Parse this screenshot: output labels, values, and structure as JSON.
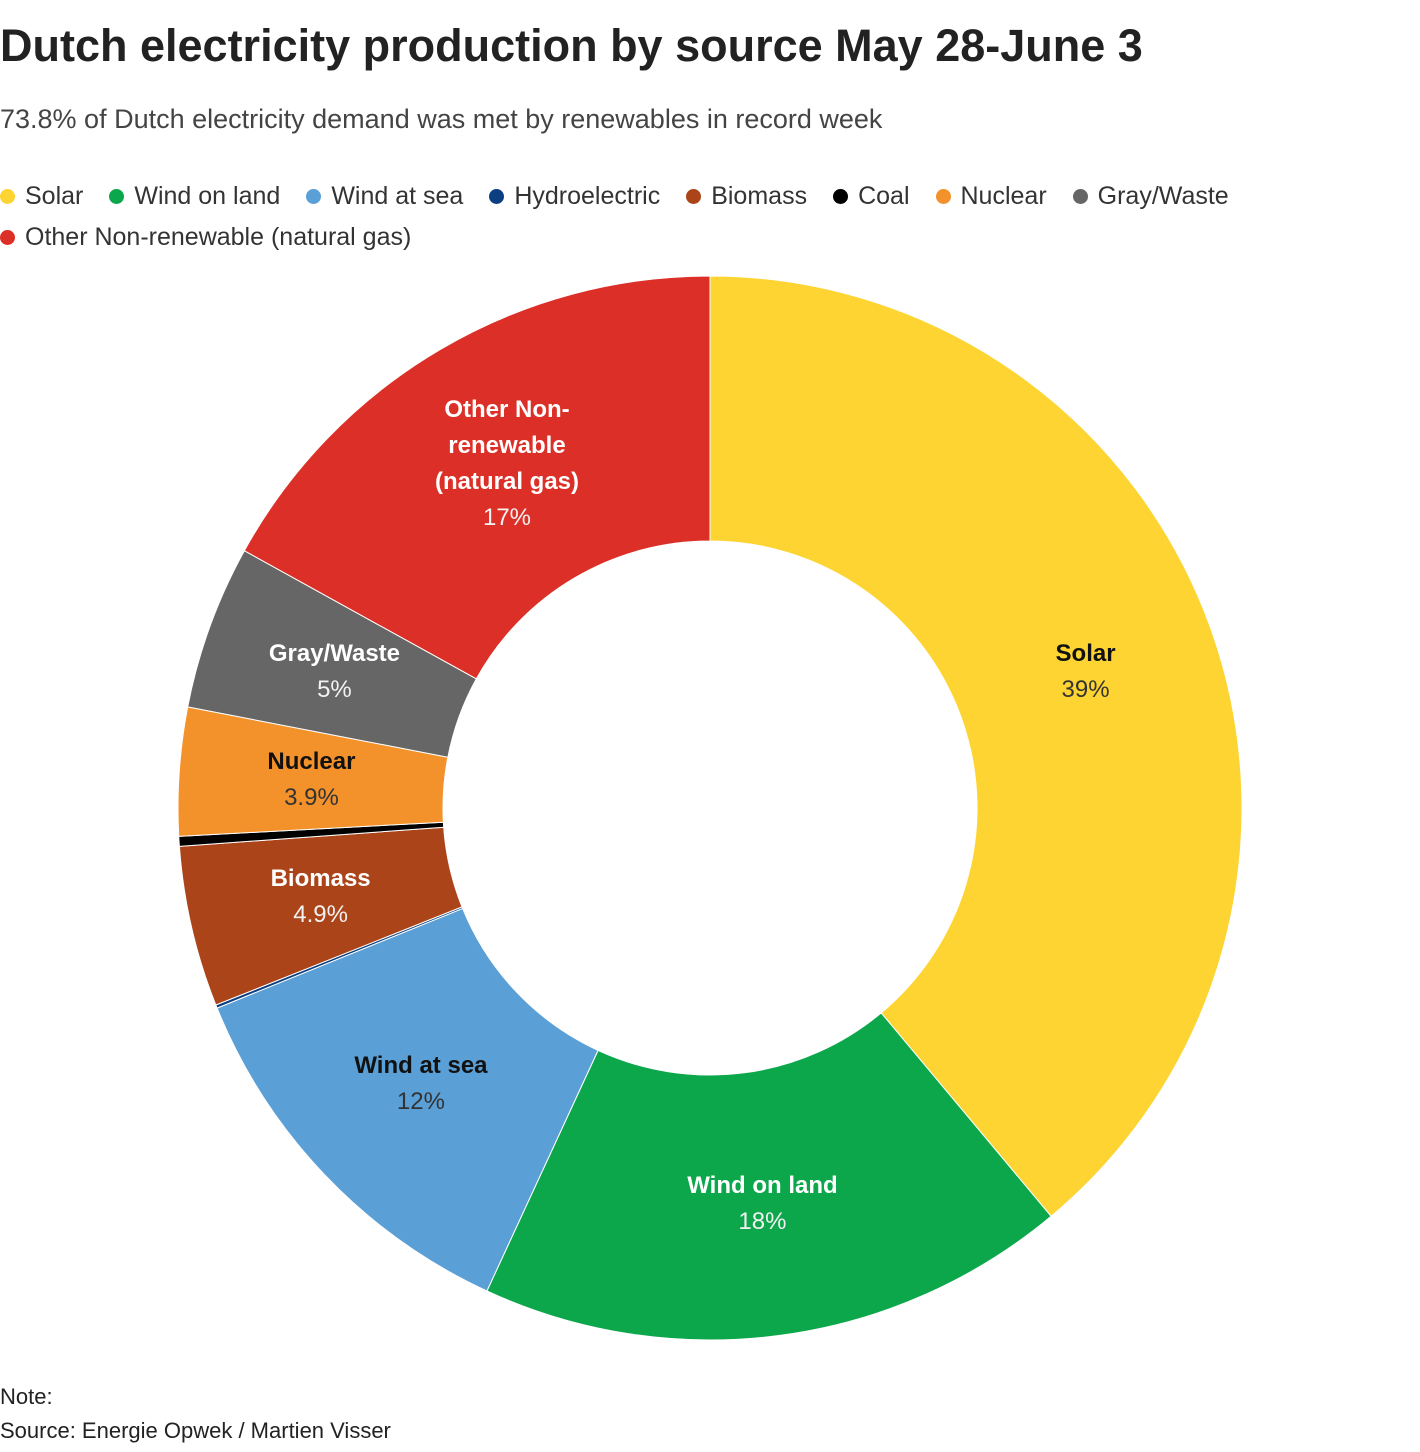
{
  "chart_data": {
    "type": "donut",
    "title": "Dutch electricity production by source May 28-June 3",
    "subtitle": "73.8% of Dutch electricity demand was met by renewables in record week",
    "categories": [
      "Solar",
      "Wind on land",
      "Wind at sea",
      "Hydroelectric",
      "Biomass",
      "Coal",
      "Nuclear",
      "Gray/Waste",
      "Other Non-renewable (natural gas)"
    ],
    "values": [
      39,
      18,
      12,
      0.1,
      4.9,
      0.3,
      3.9,
      5,
      17
    ],
    "value_labels": [
      "39%",
      "18%",
      "12%",
      null,
      "4.9%",
      null,
      "3.9%",
      "5%",
      "17%"
    ],
    "colors": [
      "#fdd431",
      "#0ca74b",
      "#5a9fd6",
      "#0c3f82",
      "#ab4419",
      "#000000",
      "#f3922a",
      "#666666",
      "#dc2f27"
    ],
    "note": "Note:",
    "source": "Source: Energie Opwek / Martien Visser"
  }
}
